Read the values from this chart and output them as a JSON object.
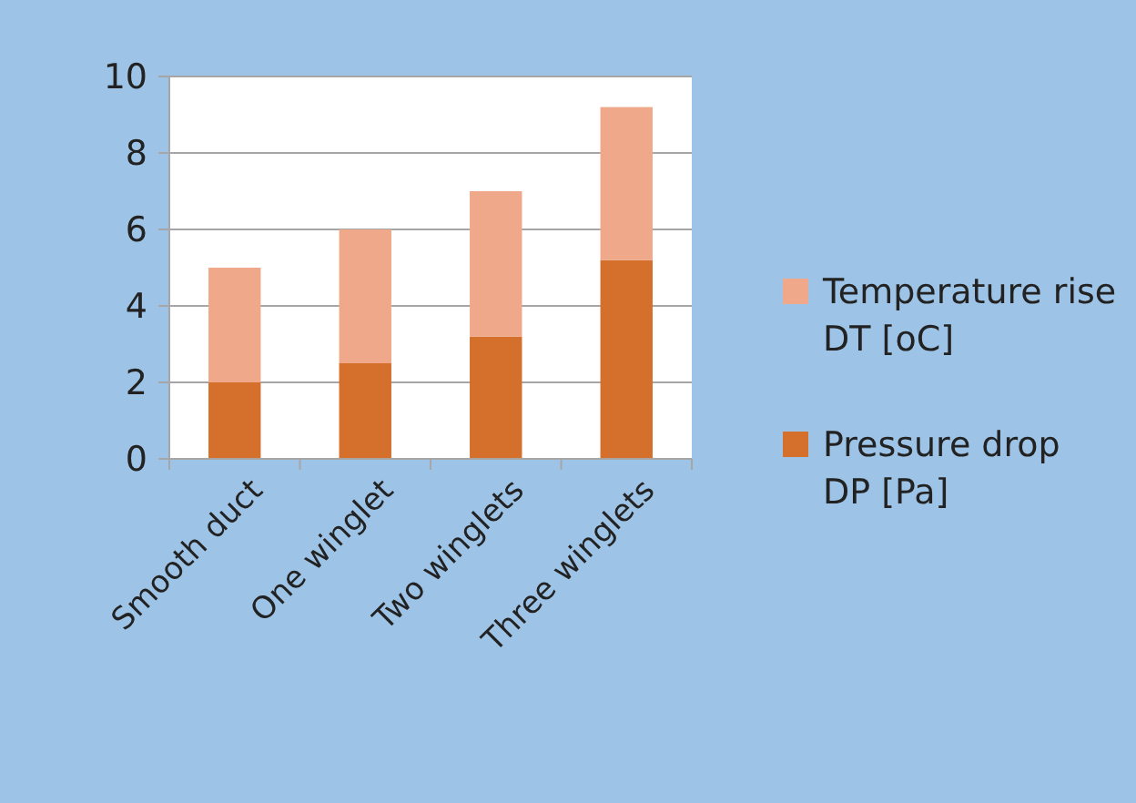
{
  "chart_data": {
    "type": "bar",
    "stacked": true,
    "categories": [
      "Smooth duct",
      "One winglet",
      "Two winglets",
      "Three winglets"
    ],
    "series": [
      {
        "name": "Pressure drop DP [Pa]",
        "color": "#d4702c",
        "values": [
          2,
          2.5,
          3.2,
          5.2
        ]
      },
      {
        "name": "Temperature rise DT [oC]",
        "color": "#f0a88a",
        "values": [
          3,
          3.5,
          3.8,
          4.0
        ]
      }
    ],
    "ylim": [
      0,
      10
    ],
    "yticks": [
      0,
      2,
      4,
      6,
      8,
      10
    ],
    "grid": "y",
    "legend": "right"
  }
}
